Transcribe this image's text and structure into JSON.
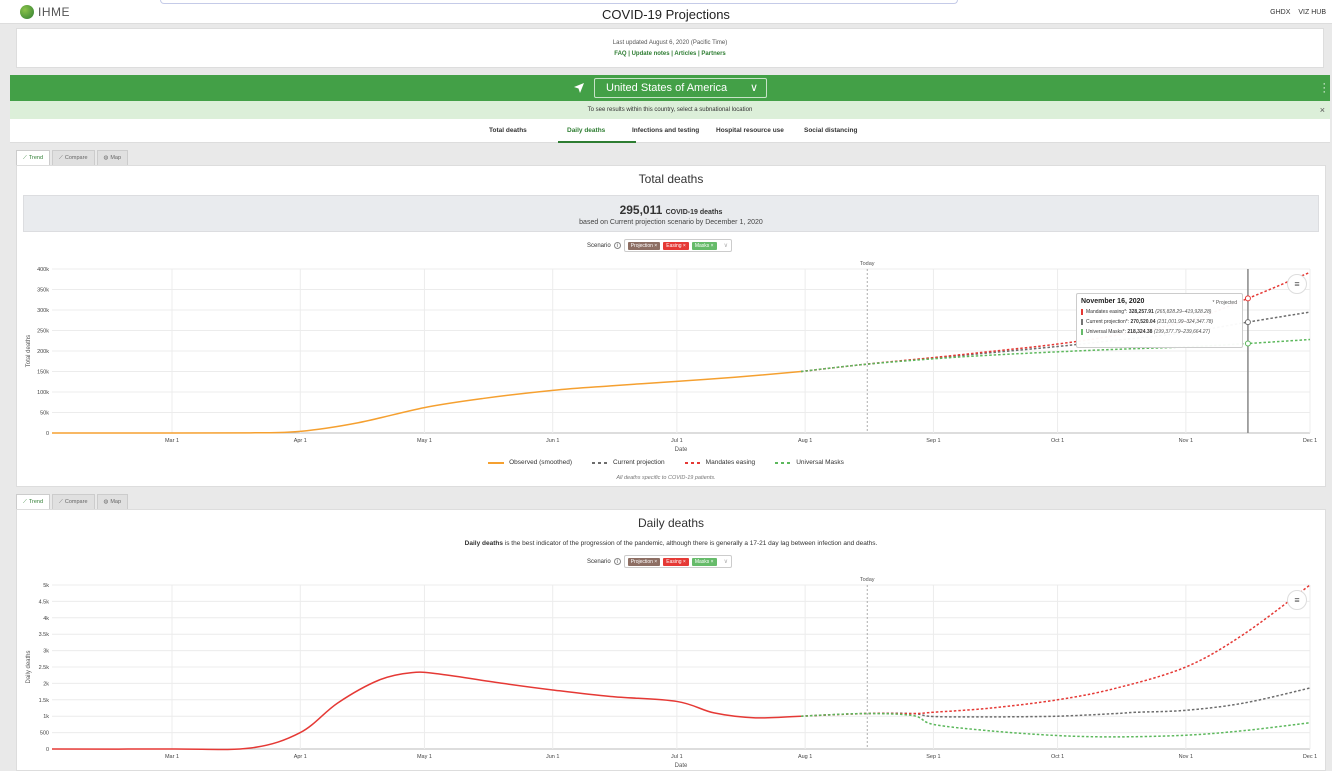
{
  "header": {
    "logo_text": "IHME",
    "title": "COVID-19 Projections",
    "links": [
      "GHDX",
      "VIZ HUB"
    ]
  },
  "info": {
    "updated": "Last updated August 6, 2020 (Pacific Time)",
    "links": "FAQ | Update notes | Articles | Partners"
  },
  "location": {
    "country": "United States of America",
    "subnote": "To see results within this country, select a subnational location"
  },
  "nav_tabs": [
    "Total deaths",
    "Daily deaths",
    "Infections and testing",
    "Hospital resource use",
    "Social distancing"
  ],
  "active_tab": "Daily deaths",
  "panel_tabs": [
    "Trend",
    "Compare",
    "Map"
  ],
  "scenario": {
    "label": "Scenario",
    "chips": [
      "Projection ×",
      "Easing ×",
      "Masks ×"
    ]
  },
  "total_chart": {
    "title": "Total deaths",
    "summary_number": "295,011",
    "summary_unit": "COVID-19 deaths",
    "summary_text": "based on Current projection scenario by December 1, 2020",
    "today_label": "Today",
    "legend": [
      "Observed (smoothed)",
      "Current projection",
      "Mandates easing",
      "Universal Masks"
    ],
    "footnote": "All deaths specific to COVID-19 patients.",
    "tooltip": {
      "date": "November 16, 2020",
      "projected": "* Projected",
      "rows": [
        {
          "name": "Mandates easing*:",
          "value": "328,257.91",
          "range": "(265,828.29–419,928.28)"
        },
        {
          "name": "Current projection*:",
          "value": "270,520.04",
          "range": "(231,001.99–324,347.78)"
        },
        {
          "name": "Universal Masks*:",
          "value": "218,324.38",
          "range": "(199,377.79–239,664.27)"
        }
      ]
    }
  },
  "daily_chart": {
    "title": "Daily deaths",
    "desc_bold": "Daily deaths",
    "desc_rest": " is the best indicator of the progression of the pandemic, although there is generally a 17-21 day lag between infection and deaths.",
    "today_label": "Today"
  },
  "colors": {
    "brand_green": "#43a047",
    "observed_total": "#f5a030",
    "observed_daily": "#e53935",
    "current": "#6d6d6d",
    "easing": "#e53935",
    "masks": "#5cb85c"
  },
  "chart_data": [
    {
      "type": "line",
      "title": "Total deaths",
      "xlabel": "Date",
      "ylabel": "Total deaths",
      "x_ticks": [
        "Mar 1",
        "Apr 1",
        "May 1",
        "Jun 1",
        "Jul 1",
        "Aug 1",
        "Sep 1",
        "Oct 1",
        "Nov 1",
        "Dec 1"
      ],
      "y_ticks": [
        "0",
        "50k",
        "100k",
        "150k",
        "200k",
        "250k",
        "300k",
        "350k",
        "400k"
      ],
      "ylim": [
        0,
        400000
      ],
      "xlim": [
        "2020-02-01",
        "2020-12-01"
      ],
      "today": "2020-08-16",
      "grid": true,
      "legend_position": "bottom",
      "series": [
        {
          "name": "Observed (smoothed)",
          "style": "solid",
          "color": "#f5a030",
          "points": [
            [
              "2020-02-01",
              0
            ],
            [
              "2020-03-01",
              0
            ],
            [
              "2020-03-20",
              400
            ],
            [
              "2020-04-01",
              4000
            ],
            [
              "2020-04-15",
              25000
            ],
            [
              "2020-05-01",
              62000
            ],
            [
              "2020-05-15",
              84000
            ],
            [
              "2020-06-01",
              104000
            ],
            [
              "2020-06-15",
              115000
            ],
            [
              "2020-07-01",
              126000
            ],
            [
              "2020-07-15",
              136000
            ],
            [
              "2020-07-31",
              150000
            ]
          ]
        },
        {
          "name": "Current projection",
          "style": "dashed",
          "color": "#6d6d6d",
          "points": [
            [
              "2020-07-31",
              150000
            ],
            [
              "2020-08-15",
              167000
            ],
            [
              "2020-09-01",
              183000
            ],
            [
              "2020-09-15",
              196000
            ],
            [
              "2020-10-01",
              211000
            ],
            [
              "2020-10-15",
              226000
            ],
            [
              "2020-11-01",
              245000
            ],
            [
              "2020-11-16",
              270520
            ],
            [
              "2020-12-01",
              295011
            ]
          ]
        },
        {
          "name": "Mandates easing",
          "style": "dashed",
          "color": "#e53935",
          "points": [
            [
              "2020-07-31",
              150000
            ],
            [
              "2020-08-15",
              167000
            ],
            [
              "2020-09-01",
              184000
            ],
            [
              "2020-09-15",
              199000
            ],
            [
              "2020-10-01",
              217000
            ],
            [
              "2020-10-15",
              238000
            ],
            [
              "2020-11-01",
              272000
            ],
            [
              "2020-11-16",
              328258
            ],
            [
              "2020-12-01",
              392000
            ]
          ]
        },
        {
          "name": "Universal Masks",
          "style": "dashed",
          "color": "#5cb85c",
          "points": [
            [
              "2020-07-31",
              150000
            ],
            [
              "2020-08-15",
              167000
            ],
            [
              "2020-09-01",
              181000
            ],
            [
              "2020-09-15",
              190000
            ],
            [
              "2020-10-01",
              198000
            ],
            [
              "2020-10-15",
              204000
            ],
            [
              "2020-11-01",
              210000
            ],
            [
              "2020-11-16",
              218324
            ],
            [
              "2020-12-01",
              228000
            ]
          ]
        }
      ]
    },
    {
      "type": "line",
      "title": "Daily deaths",
      "xlabel": "Date",
      "ylabel": "Daily deaths",
      "x_ticks": [
        "Mar 1",
        "Apr 1",
        "May 1",
        "Jun 1",
        "Jul 1",
        "Aug 1",
        "Sep 1",
        "Oct 1",
        "Nov 1",
        "Dec 1"
      ],
      "y_ticks": [
        "0",
        "500",
        "1k",
        "1.5k",
        "2k",
        "2.5k",
        "3k",
        "3.5k",
        "4k",
        "4.5k",
        "5k"
      ],
      "ylim": [
        0,
        5000
      ],
      "xlim": [
        "2020-02-01",
        "2020-12-01"
      ],
      "today": "2020-08-16",
      "grid": true,
      "series": [
        {
          "name": "Observed (smoothed)",
          "style": "solid",
          "color": "#e53935",
          "points": [
            [
              "2020-02-01",
              0
            ],
            [
              "2020-03-01",
              0
            ],
            [
              "2020-03-20",
              30
            ],
            [
              "2020-04-01",
              500
            ],
            [
              "2020-04-10",
              1400
            ],
            [
              "2020-04-20",
              2100
            ],
            [
              "2020-04-28",
              2330
            ],
            [
              "2020-05-05",
              2280
            ],
            [
              "2020-05-20",
              2000
            ],
            [
              "2020-06-01",
              1800
            ],
            [
              "2020-06-15",
              1600
            ],
            [
              "2020-07-01",
              1450
            ],
            [
              "2020-07-10",
              1100
            ],
            [
              "2020-07-20",
              950
            ],
            [
              "2020-07-31",
              1000
            ]
          ]
        },
        {
          "name": "Current projection",
          "style": "dashed",
          "color": "#6d6d6d",
          "points": [
            [
              "2020-07-31",
              1000
            ],
            [
              "2020-08-15",
              1080
            ],
            [
              "2020-08-27",
              1080
            ],
            [
              "2020-09-01",
              990
            ],
            [
              "2020-09-15",
              980
            ],
            [
              "2020-10-01",
              1000
            ],
            [
              "2020-10-15",
              1080
            ],
            [
              "2020-10-20",
              1120
            ],
            [
              "2020-11-01",
              1180
            ],
            [
              "2020-11-15",
              1400
            ],
            [
              "2020-12-01",
              1860
            ]
          ]
        },
        {
          "name": "Mandates easing",
          "style": "dashed",
          "color": "#e53935",
          "points": [
            [
              "2020-07-31",
              1000
            ],
            [
              "2020-08-15",
              1080
            ],
            [
              "2020-08-27",
              1080
            ],
            [
              "2020-09-01",
              1120
            ],
            [
              "2020-09-15",
              1250
            ],
            [
              "2020-10-01",
              1500
            ],
            [
              "2020-10-15",
              1850
            ],
            [
              "2020-11-01",
              2500
            ],
            [
              "2020-11-15",
              3500
            ],
            [
              "2020-12-01",
              5000
            ]
          ]
        },
        {
          "name": "Universal Masks",
          "style": "dashed",
          "color": "#5cb85c",
          "points": [
            [
              "2020-07-31",
              1000
            ],
            [
              "2020-08-15",
              1080
            ],
            [
              "2020-08-27",
              1020
            ],
            [
              "2020-09-01",
              750
            ],
            [
              "2020-09-15",
              550
            ],
            [
              "2020-10-01",
              410
            ],
            [
              "2020-10-15",
              370
            ],
            [
              "2020-11-01",
              420
            ],
            [
              "2020-11-15",
              560
            ],
            [
              "2020-12-01",
              800
            ]
          ]
        }
      ]
    }
  ]
}
